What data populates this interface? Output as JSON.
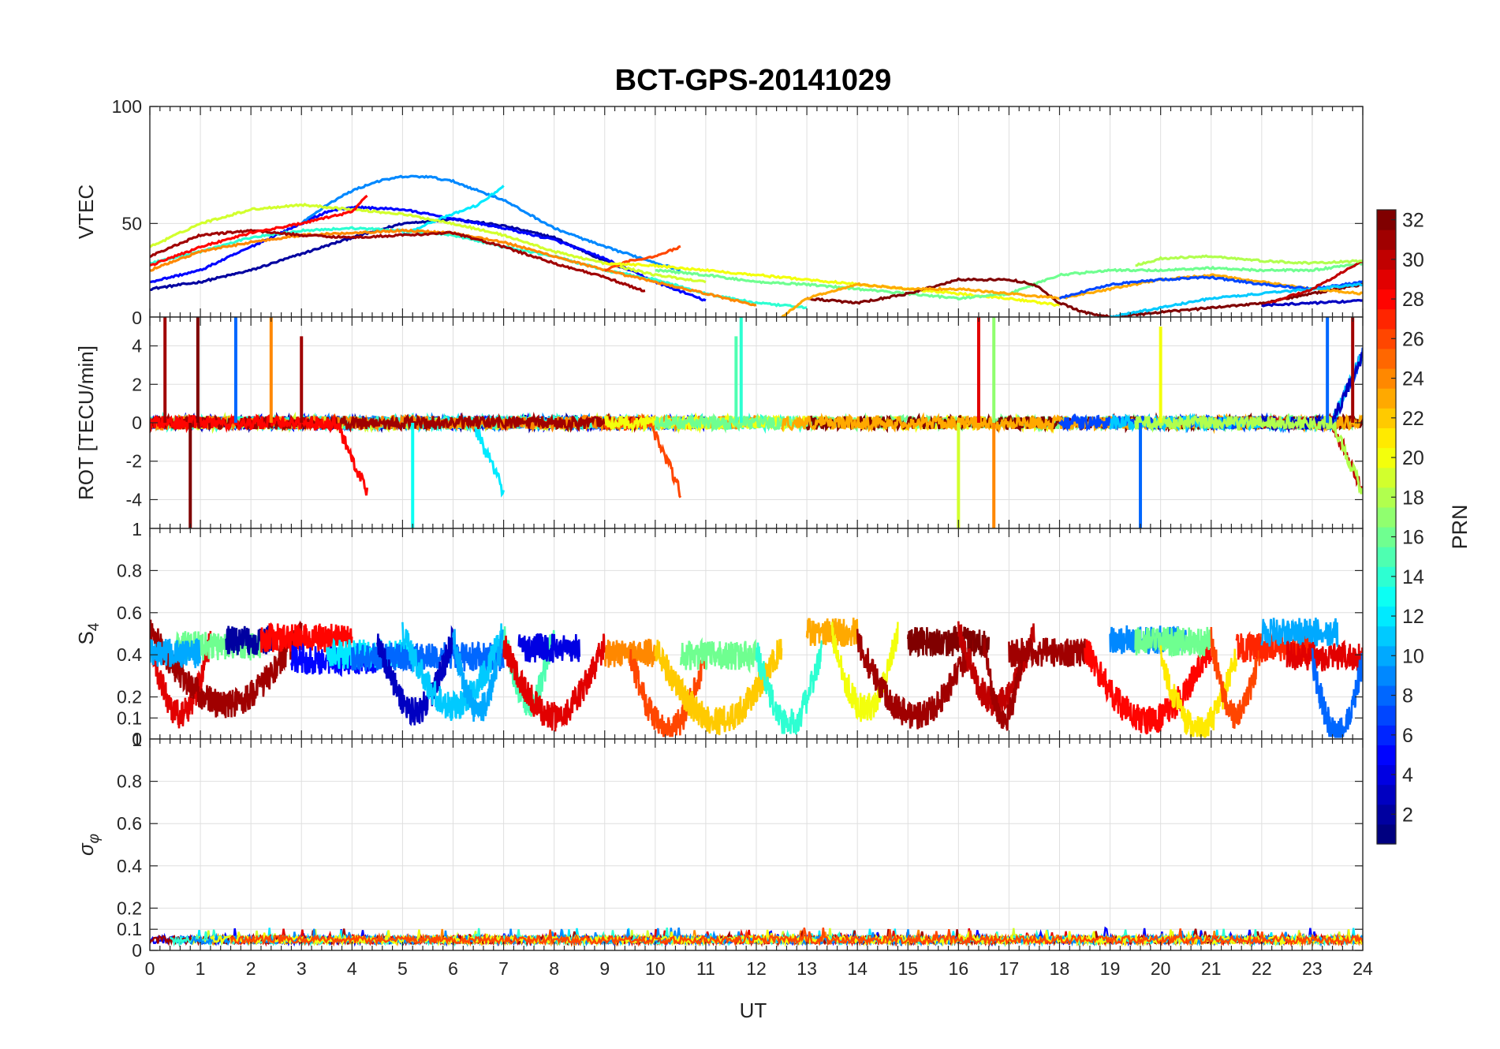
{
  "chart_data": {
    "title": "BCT-GPS-20141029",
    "xlabel": "UT",
    "xlim": [
      0,
      24
    ],
    "xticks": [
      "0",
      "1",
      "2",
      "3",
      "4",
      "5",
      "6",
      "7",
      "8",
      "9",
      "10",
      "11",
      "12",
      "13",
      "14",
      "15",
      "16",
      "17",
      "18",
      "19",
      "20",
      "21",
      "22",
      "23",
      "24"
    ],
    "grid": true,
    "colorbar": {
      "label": "PRN",
      "colormap": "jet",
      "range": [
        1,
        32
      ],
      "ticks": [
        "2",
        "4",
        "6",
        "8",
        "10",
        "12",
        "14",
        "16",
        "18",
        "20",
        "22",
        "24",
        "26",
        "28",
        "30",
        "32"
      ]
    },
    "panels": [
      {
        "type": "line",
        "ylabel": "VTEC",
        "ylim": [
          10,
          100
        ],
        "yticks": [
          "50",
          "100"
        ],
        "series": [
          {
            "prn": 2,
            "x": [
              0,
              1,
              2,
              3,
              4,
              5,
              6,
              7,
              8,
              9,
              9.5
            ],
            "y": [
              22,
              25,
              30,
              37,
              44,
              50,
              52,
              49,
              44,
              34,
              30
            ]
          },
          {
            "prn": 5,
            "x": [
              0,
              1,
              2,
              3,
              3.5,
              4,
              5,
              6,
              7,
              8,
              9,
              10,
              11
            ],
            "y": [
              25,
              30,
              40,
              50,
              55,
              57,
              56,
              52,
              48,
              43,
              35,
              25,
              17
            ]
          },
          {
            "prn": 9,
            "x": [
              3,
              3.5,
              4,
              4.5,
              5,
              5.5,
              6,
              7,
              8,
              9,
              10.5
            ],
            "y": [
              50,
              58,
              64,
              68,
              70,
              70,
              68,
              60,
              48,
              40,
              30
            ]
          },
          {
            "prn": 12,
            "x": [
              5,
              5.5,
              6,
              6.5,
              7
            ],
            "y": [
              45,
              50,
              54,
              58,
              66
            ]
          },
          {
            "prn": 19,
            "x": [
              0,
              1,
              2,
              3,
              4,
              5,
              6,
              7,
              8,
              9,
              10,
              11
            ],
            "y": [
              40,
              50,
              56,
              58,
              56,
              54,
              50,
              45,
              38,
              33,
              28,
              25
            ]
          },
          {
            "prn": 14,
            "x": [
              0,
              1,
              2,
              3,
              4,
              5,
              6,
              7,
              8,
              9,
              10,
              11,
              12,
              13
            ],
            "y": [
              33,
              38,
              44,
              47,
              48,
              47,
              45,
              40,
              36,
              30,
              26,
              20,
              16,
              14
            ]
          },
          {
            "prn": 24,
            "x": [
              0,
              1,
              2,
              3,
              4,
              5,
              6,
              7,
              8,
              9,
              10,
              11,
              12
            ],
            "y": [
              30,
              38,
              42,
              45,
              46,
              47,
              46,
              42,
              36,
              30,
              25,
              20,
              15
            ]
          },
          {
            "prn": 31,
            "x": [
              0,
              1,
              2,
              3,
              4,
              5,
              6,
              7,
              8,
              9,
              9.8
            ],
            "y": [
              36,
              45,
              47,
              45,
              44,
              45,
              46,
              40,
              33,
              27,
              21
            ]
          },
          {
            "prn": 28,
            "x": [
              0,
              1,
              2,
              3,
              4,
              4.3
            ],
            "y": [
              32,
              40,
              46,
              50,
              55,
              62
            ]
          },
          {
            "prn": 26,
            "x": [
              9,
              9.5,
              10,
              10.5
            ],
            "y": [
              30,
              34,
              36,
              40
            ]
          },
          {
            "prn": 20,
            "x": [
              9,
              10,
              11,
              12,
              13,
              14,
              15,
              16,
              17,
              18
            ],
            "y": [
              33,
              32,
              30,
              28,
              26,
              24,
              22,
              20,
              18,
              15
            ]
          },
          {
            "prn": 16,
            "x": [
              10,
              11,
              12,
              13,
              14,
              15,
              16,
              17,
              18,
              19,
              20,
              21,
              22,
              23,
              24
            ],
            "y": [
              30,
              28,
              25,
              24,
              22,
              20,
              18,
              20,
              28,
              30,
              30,
              31,
              30,
              30,
              33
            ]
          },
          {
            "prn": 32,
            "x": [
              13,
              14,
              15,
              16,
              17,
              17.5,
              18,
              18.5,
              19,
              20,
              21,
              22,
              23,
              24
            ],
            "y": [
              18,
              16,
              20,
              26,
              26,
              24,
              16,
              12,
              10,
              12,
              14,
              16,
              20,
              24
            ]
          },
          {
            "prn": 23,
            "x": [
              12.5,
              13,
              14,
              15,
              16,
              17,
              18,
              19,
              20,
              21,
              22,
              23,
              24
            ],
            "y": [
              10,
              18,
              24,
              22,
              22,
              20,
              18,
              22,
              26,
              28,
              25,
              22,
              20
            ]
          },
          {
            "prn": 7,
            "x": [
              18,
              19,
              20,
              21,
              22,
              23,
              24
            ],
            "y": [
              18,
              24,
              26,
              27,
              24,
              22,
              25
            ]
          },
          {
            "prn": 11,
            "x": [
              19,
              20,
              21,
              22,
              23,
              24
            ],
            "y": [
              10,
              14,
              18,
              20,
              22,
              24
            ]
          },
          {
            "prn": 30,
            "x": [
              22,
              23,
              24
            ],
            "y": [
              15,
              22,
              34
            ]
          },
          {
            "prn": 3,
            "x": [
              22,
              23,
              24
            ],
            "y": [
              15,
              16,
              17
            ]
          },
          {
            "prn": 18,
            "x": [
              19.5,
              20,
              21,
              22,
              23,
              24
            ],
            "y": [
              32,
              35,
              36,
              34,
              33,
              34
            ]
          }
        ]
      },
      {
        "type": "line",
        "ylabel": "ROT [TECU/min]",
        "ylim": [
          -5.5,
          5.5
        ],
        "yticks": [
          "-4",
          "-2",
          "0",
          "2",
          "4"
        ],
        "top_tick": "0",
        "spikes": [
          {
            "prn": 31,
            "x": 0.3,
            "y0": 0,
            "y1": 5.5
          },
          {
            "prn": 32,
            "x": 0.8,
            "y0": 0,
            "y1": -5.5
          },
          {
            "prn": 32,
            "x": 0.95,
            "y0": 0,
            "y1": 5.5
          },
          {
            "prn": 8,
            "x": 1.7,
            "y0": 0,
            "y1": 5.5
          },
          {
            "prn": 24,
            "x": 2.4,
            "y0": 0,
            "y1": 5.5
          },
          {
            "prn": 31,
            "x": 3.0,
            "y0": 0,
            "y1": 4.5
          },
          {
            "prn": 13,
            "x": 5.2,
            "y0": 0,
            "y1": -5.5
          },
          {
            "prn": 14,
            "x": 11.7,
            "y0": 0,
            "y1": 5.5
          },
          {
            "prn": 15,
            "x": 11.6,
            "y0": 0,
            "y1": 4.5
          },
          {
            "prn": 29,
            "x": 16.4,
            "y0": 0,
            "y1": 5.5
          },
          {
            "prn": 17,
            "x": 16.7,
            "y0": 0,
            "y1": 5.5
          },
          {
            "prn": 19,
            "x": 16.0,
            "y0": 0,
            "y1": -5.5
          },
          {
            "prn": 24,
            "x": 16.7,
            "y0": 0,
            "y1": -5.5
          },
          {
            "prn": 20,
            "x": 20.0,
            "y0": 0,
            "y1": 5.0
          },
          {
            "prn": 8,
            "x": 19.6,
            "y0": 0,
            "y1": -5.5
          },
          {
            "prn": 8,
            "x": 23.3,
            "y0": 0,
            "y1": 5.5
          },
          {
            "prn": 31,
            "x": 23.8,
            "y0": 0,
            "y1": 5.5
          }
        ]
      },
      {
        "type": "line",
        "ylabel": "S4",
        "ylim": [
          0,
          1
        ],
        "yticks": [
          "0.1",
          "0.2",
          "0.4",
          "0.6",
          "0.8"
        ],
        "top_tick": "1",
        "bottom_tick": "0"
      },
      {
        "type": "line",
        "ylabel": "σφ",
        "ylim": [
          0,
          1
        ],
        "yticks": [
          "0",
          "0.1",
          "0.2",
          "0.4",
          "0.6",
          "0.8"
        ],
        "top_tick": "1"
      }
    ]
  }
}
